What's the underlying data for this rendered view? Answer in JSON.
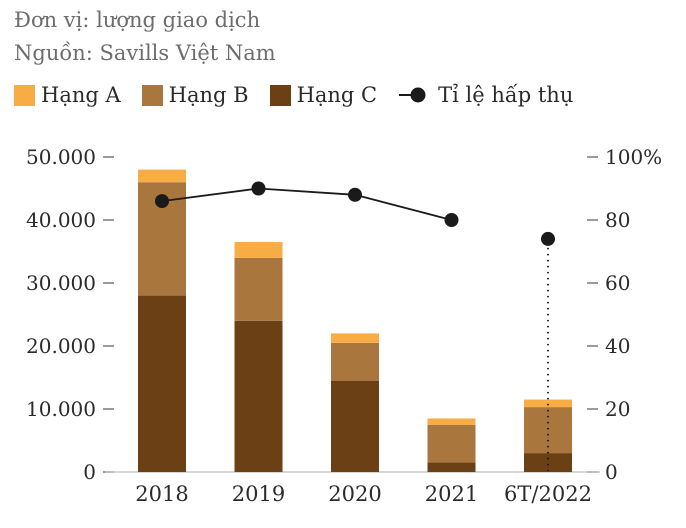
{
  "header": {
    "unit_label": "Đơn vị: lượng giao dịch",
    "source_label": "Nguồn: Savills Việt Nam"
  },
  "chart_data": {
    "type": "bar",
    "stacked": true,
    "title": "",
    "categories": [
      "2018",
      "2019",
      "2020",
      "2021",
      "6T/2022"
    ],
    "series": [
      {
        "name": "Hạng A",
        "color": "#F8AC44",
        "values": [
          2000,
          2500,
          1500,
          1000,
          1200
        ]
      },
      {
        "name": "Hạng B",
        "color": "#A9763E",
        "values": [
          18000,
          10000,
          6000,
          6000,
          7300
        ]
      },
      {
        "name": "Hạng C",
        "color": "#6C4015",
        "values": [
          28000,
          24000,
          14500,
          1500,
          3000
        ]
      }
    ],
    "line": {
      "name": "Tỉ lệ hấp thụ",
      "color": "#1a1a1a",
      "unit": "%",
      "values": [
        86,
        90,
        88,
        80,
        74
      ],
      "detached_last": true
    },
    "left_axis": {
      "max": 50000,
      "tick_values": [
        0,
        10000,
        20000,
        30000,
        40000,
        50000
      ],
      "tick_labels": [
        "0",
        "10.000",
        "20.000",
        "30.000",
        "40.000",
        "50.000"
      ]
    },
    "right_axis": {
      "max": 100,
      "tick_values": [
        0,
        20,
        40,
        60,
        80,
        100
      ],
      "tick_labels": [
        "0",
        "20",
        "40",
        "60",
        "80",
        "100%"
      ]
    },
    "legend_position": "top",
    "grid": false
  }
}
